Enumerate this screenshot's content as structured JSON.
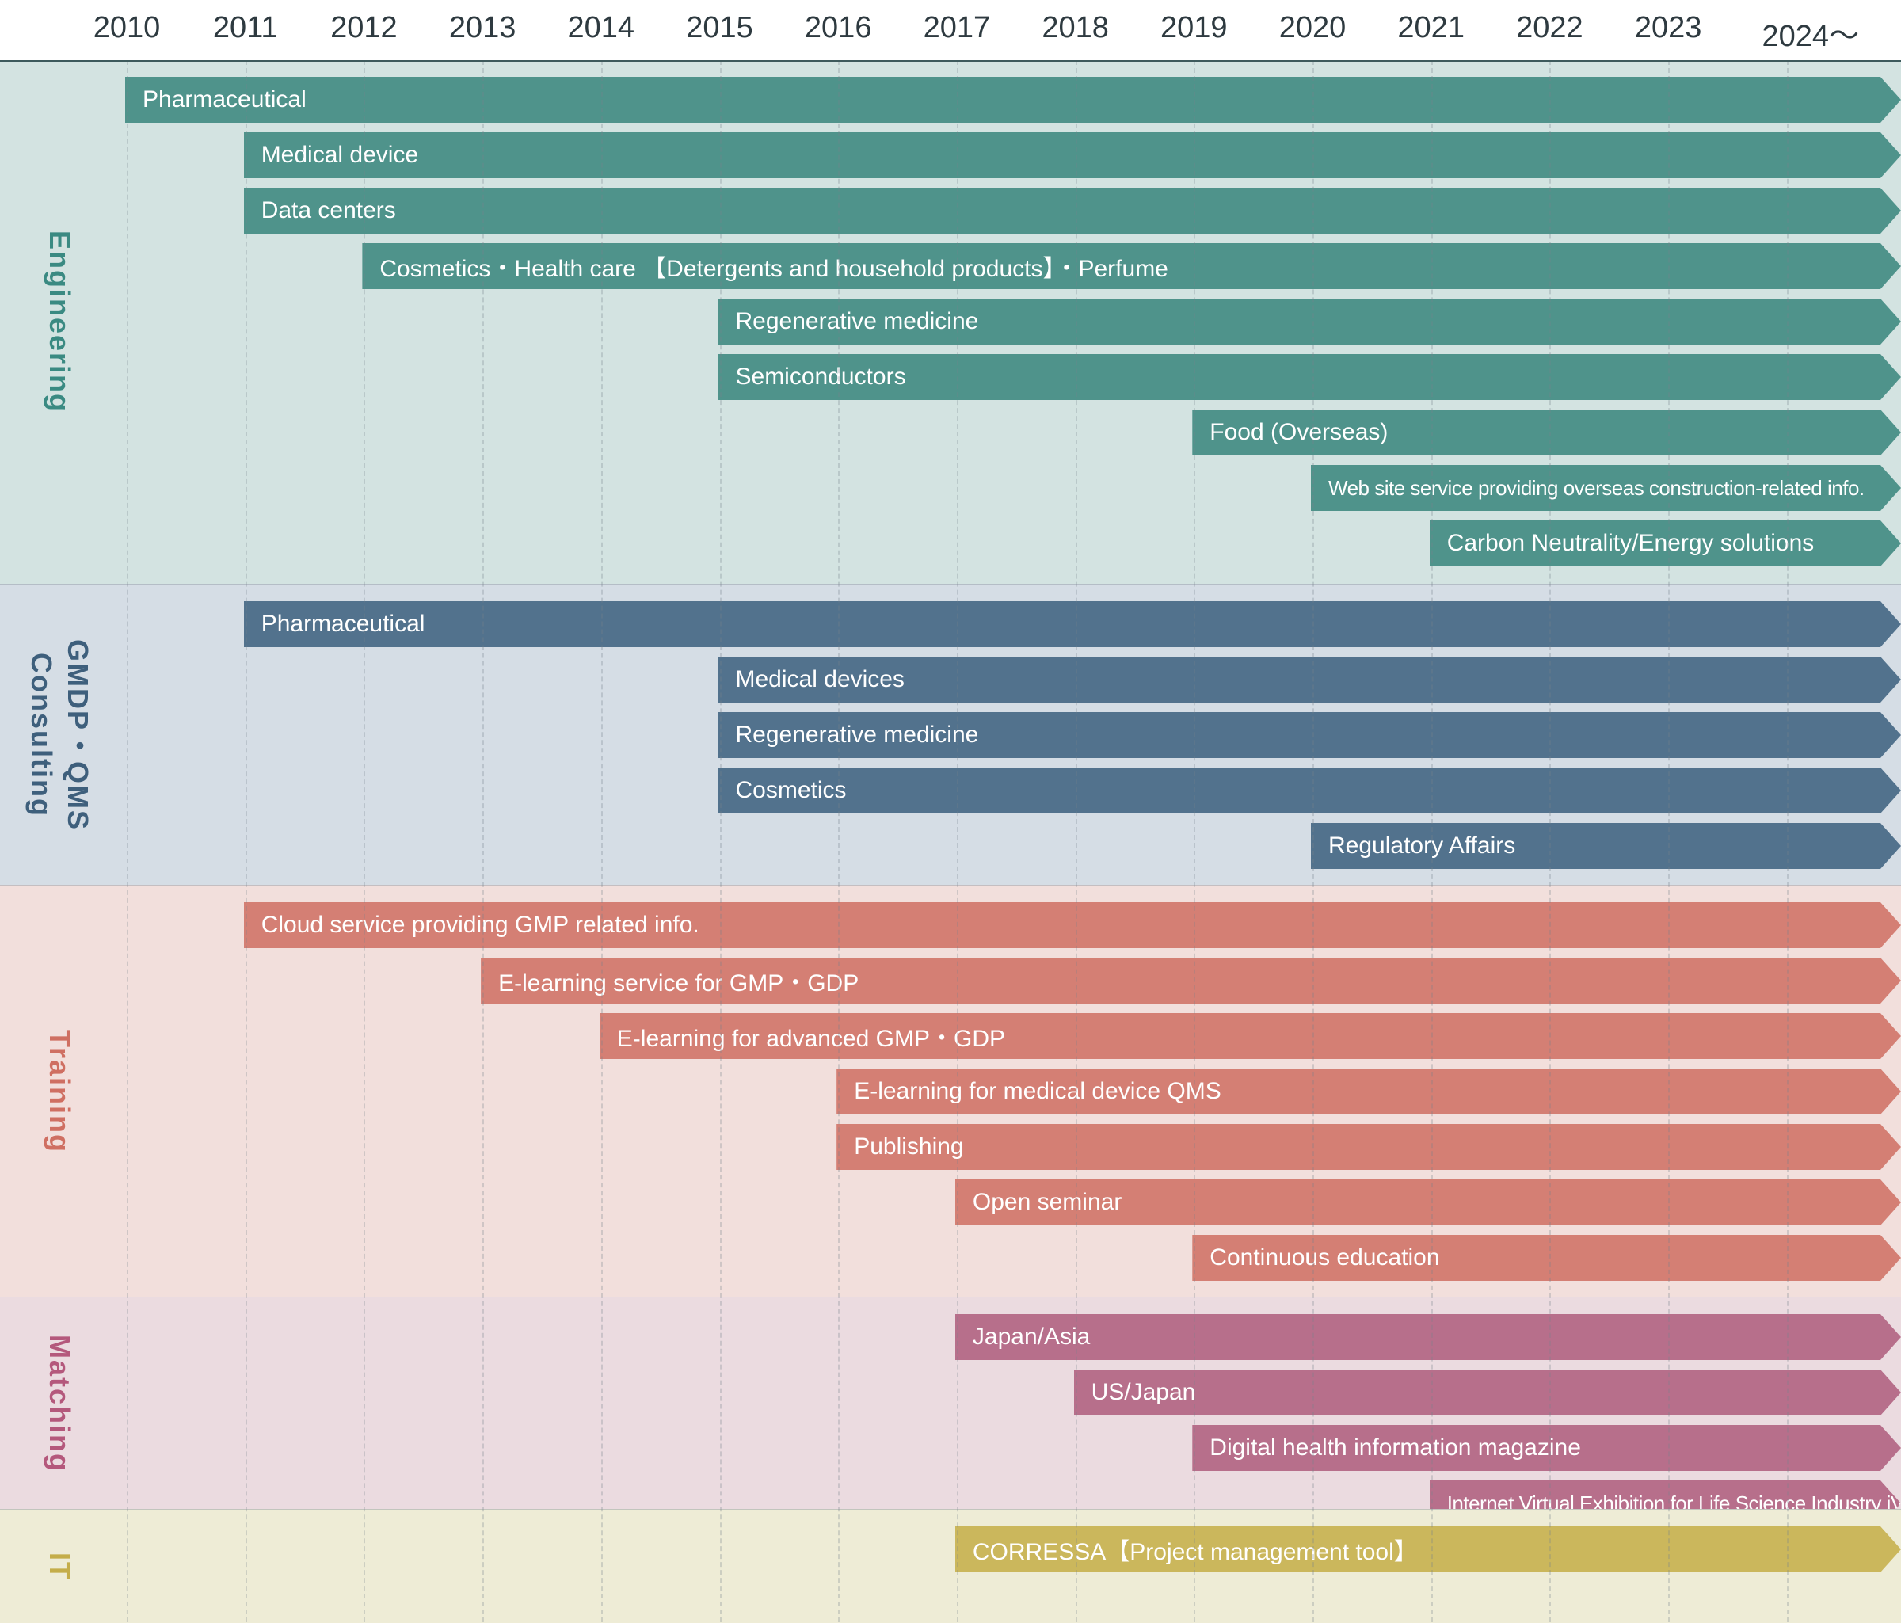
{
  "years": [
    "2010",
    "2011",
    "2012",
    "2013",
    "2014",
    "2015",
    "2016",
    "2017",
    "2018",
    "2019",
    "2020",
    "2021",
    "2022",
    "2023",
    "2024〜"
  ],
  "sections": [
    {
      "label": "Engineering",
      "bg": "#d3e3e1",
      "color": "#4f938b",
      "label_color": "#3a8a82",
      "bars": [
        {
          "label": "Pharmaceutical",
          "start": "2010"
        },
        {
          "label": "Medical device",
          "start": "2011"
        },
        {
          "label": "Data centers",
          "start": "2011"
        },
        {
          "label": "Cosmetics・Health care 【Detergents and household products】・Perfume",
          "start": "2012"
        },
        {
          "label": "Regenerative medicine",
          "start": "2015"
        },
        {
          "label": "Semiconductors",
          "start": "2015"
        },
        {
          "label": "Food (Overseas)",
          "start": "2019"
        },
        {
          "label": "Web site service providing overseas construction-related info.",
          "start": "2020",
          "small": true
        },
        {
          "label": "Carbon Neutrality/Energy solutions",
          "start": "2021"
        }
      ]
    },
    {
      "label": "GMDP・QMS\nConsulting",
      "bg": "#d5dde5",
      "color": "#52728d",
      "label_color": "#3e5f7c",
      "bars": [
        {
          "label": "Pharmaceutical",
          "start": "2011"
        },
        {
          "label": "Medical devices",
          "start": "2015"
        },
        {
          "label": "Regenerative medicine",
          "start": "2015"
        },
        {
          "label": "Cosmetics",
          "start": "2015"
        },
        {
          "label": "Regulatory Affairs",
          "start": "2020"
        }
      ]
    },
    {
      "label": "Training",
      "bg": "#f2dfdc",
      "color": "#d47f74",
      "label_color": "#cf6f62",
      "bars": [
        {
          "label": "Cloud service providing GMP related info.",
          "start": "2011"
        },
        {
          "label": "E-learning service for GMP・GDP",
          "start": "2013"
        },
        {
          "label": "E-learning for advanced GMP・GDP",
          "start": "2014"
        },
        {
          "label": "E-learning for medical device QMS",
          "start": "2016"
        },
        {
          "label": "Publishing",
          "start": "2016"
        },
        {
          "label": "Open seminar",
          "start": "2017"
        },
        {
          "label": "Continuous education",
          "start": "2019"
        }
      ]
    },
    {
      "label": "Matching",
      "bg": "#ebdbe0",
      "color": "#b76f8b",
      "label_color": "#b4587c",
      "bars": [
        {
          "label": "Japan/Asia",
          "start": "2017"
        },
        {
          "label": "US/Japan",
          "start": "2018"
        },
        {
          "label": "Digital health information magazine",
          "start": "2019"
        },
        {
          "label": "Internet Virtual Exhibition for Life Science Industry iVEXL",
          "start": "2021",
          "small": true
        }
      ]
    },
    {
      "label": "IT",
      "bg": "#eeecd6",
      "color": "#cbb75c",
      "label_color": "#c4ad4a",
      "bars": [
        {
          "label": "CORRESSA【Project management tool】",
          "start": "2017"
        }
      ]
    }
  ]
}
